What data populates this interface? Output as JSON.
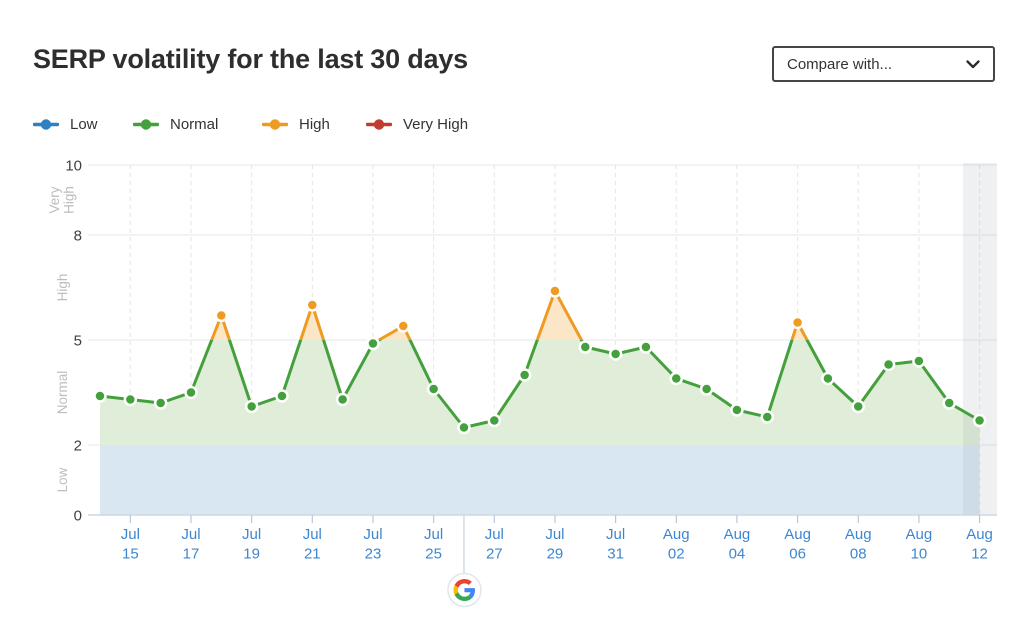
{
  "header": {
    "title": "SERP volatility for the last 30 days",
    "compare_dropdown": {
      "label": "Compare with...",
      "state": "collapsed"
    }
  },
  "legend": {
    "items": [
      {
        "label": "Low",
        "color": "#2e80c1"
      },
      {
        "label": "Normal",
        "color": "#44a03c"
      },
      {
        "label": "High",
        "color": "#ef9b21"
      },
      {
        "label": "Very High",
        "color": "#c13c2d"
      }
    ]
  },
  "chart_data": {
    "type": "line",
    "title": "SERP volatility for the last 30 days",
    "x": [
      "Jul 14",
      "Jul 15",
      "Jul 16",
      "Jul 17",
      "Jul 18",
      "Jul 19",
      "Jul 20",
      "Jul 21",
      "Jul 22",
      "Jul 23",
      "Jul 24",
      "Jul 25",
      "Jul 26",
      "Jul 27",
      "Jul 28",
      "Jul 29",
      "Jul 30",
      "Jul 31",
      "Aug 01",
      "Aug 02",
      "Aug 03",
      "Aug 04",
      "Aug 05",
      "Aug 06",
      "Aug 07",
      "Aug 08",
      "Aug 09",
      "Aug 10",
      "Aug 11",
      "Aug 12"
    ],
    "series": [
      {
        "name": "SERP volatility",
        "values": [
          3.4,
          3.3,
          3.2,
          3.5,
          5.7,
          3.1,
          3.4,
          6.0,
          3.3,
          4.9,
          5.4,
          3.6,
          2.5,
          2.7,
          4.0,
          6.4,
          4.8,
          4.6,
          4.8,
          3.9,
          3.6,
          3.0,
          2.8,
          5.5,
          3.9,
          3.1,
          4.3,
          4.4,
          3.2,
          2.7
        ]
      }
    ],
    "point_levels": [
      "normal",
      "normal",
      "normal",
      "normal",
      "high",
      "normal",
      "normal",
      "high",
      "normal",
      "normal",
      "high",
      "normal",
      "normal",
      "normal",
      "normal",
      "high",
      "normal",
      "normal",
      "normal",
      "normal",
      "normal",
      "normal",
      "normal",
      "high",
      "normal",
      "normal",
      "normal",
      "normal",
      "normal",
      "normal"
    ],
    "y_ticks": [
      0,
      2,
      5,
      8,
      10
    ],
    "ylim": [
      0,
      10
    ],
    "zones": [
      {
        "label": "Low",
        "from": 0,
        "to": 2
      },
      {
        "label": "Normal",
        "from": 2,
        "to": 5
      },
      {
        "label": "High",
        "from": 5,
        "to": 8
      },
      {
        "label": "Very High",
        "from": 8,
        "to": 10
      }
    ],
    "x_tick_labels": [
      [
        "Jul",
        "15"
      ],
      [
        "Jul",
        "17"
      ],
      [
        "Jul",
        "19"
      ],
      [
        "Jul",
        "21"
      ],
      [
        "Jul",
        "23"
      ],
      [
        "Jul",
        "25"
      ],
      [
        "Jul",
        "27"
      ],
      [
        "Jul",
        "29"
      ],
      [
        "Jul",
        "31"
      ],
      [
        "Aug",
        "02"
      ],
      [
        "Aug",
        "04"
      ],
      [
        "Aug",
        "06"
      ],
      [
        "Aug",
        "08"
      ],
      [
        "Aug",
        "10"
      ],
      [
        "Aug",
        "12"
      ]
    ],
    "annotations": [
      {
        "type": "google-update-marker",
        "date": "Jul 26"
      }
    ],
    "today_highlight": "Aug 12",
    "grid": true,
    "legend_position": "top-left"
  },
  "colors": {
    "low": "#2e80c1",
    "normal": "#44a03c",
    "high": "#ef9b21",
    "very_high": "#c13c2d",
    "x_label": "#3d87d1",
    "tick_number": "#3f3f3f",
    "zone_label": "#bdbdbd",
    "grid": "#ececec",
    "axis": "#ccd8e3",
    "tick_mark": "#b7c8da",
    "fill_low": "#d8e7f2",
    "fill_normal": "#e0edd8",
    "fill_high": "#fbe6c8",
    "today_band": "rgba(150,162,175,0.16)",
    "google_blue": "#4285F4",
    "google_red": "#EA4335",
    "google_yellow": "#FBBC05",
    "google_green": "#34A853"
  }
}
